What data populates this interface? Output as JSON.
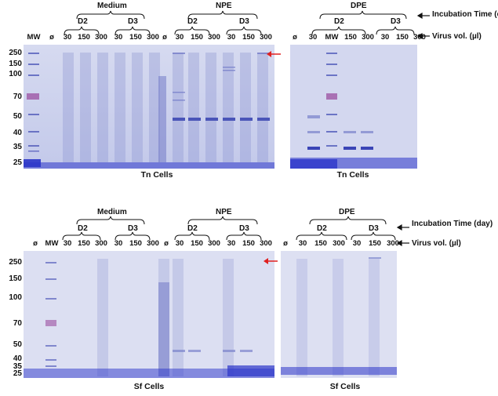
{
  "top_panel": {
    "left_gel": {
      "group_labels": [
        "Medium",
        "NPE"
      ],
      "day_labels": [
        "D2",
        "D3",
        "D2",
        "D3"
      ],
      "lane_labels": [
        "MW",
        "ø",
        "30",
        "150",
        "300",
        "30",
        "150",
        "300",
        "ø",
        "30",
        "150",
        "300",
        "30",
        "150",
        "300"
      ],
      "mw_markers": [
        "250",
        "150",
        "100",
        "70",
        "50",
        "40",
        "35",
        "25"
      ],
      "caption": "Tn Cells"
    },
    "right_gel": {
      "group_label": "DPE",
      "day_labels": [
        "D2",
        "D3"
      ],
      "lane_labels": [
        "ø",
        "30",
        "MW",
        "150",
        "300",
        "30",
        "150",
        "300"
      ],
      "caption": "Tn Cells"
    },
    "incubation_label": "Incubation Time (day)",
    "virus_label": "Virus vol. (µl)"
  },
  "bottom_panel": {
    "left_gel": {
      "group_labels": [
        "Medium",
        "NPE"
      ],
      "day_labels": [
        "D2",
        "D3",
        "D2",
        "D3"
      ],
      "lane_labels": [
        "ø",
        "MW",
        "30",
        "150",
        "300",
        "30",
        "150",
        "300",
        "ø",
        "30",
        "150",
        "300",
        "30",
        "150",
        "300"
      ],
      "mw_markers": [
        "250",
        "150",
        "100",
        "70",
        "50",
        "40",
        "35",
        "25"
      ],
      "caption": "Sf Cells"
    },
    "right_gel": {
      "group_label": "DPE",
      "day_labels": [
        "D2",
        "D3"
      ],
      "lane_labels": [
        "ø",
        "30",
        "150",
        "300",
        "30",
        "150",
        "300"
      ],
      "caption": "Sf Cells"
    },
    "incubation_label": "Incubation Time (day)",
    "virus_label": "Virus vol. (µl)"
  },
  "colors": {
    "gel_background": "#cdd2ec",
    "band": "#4a55b8",
    "dye_front": "#2b35c9",
    "marker_70": "#9b4fa0",
    "arrow": "#e02020"
  }
}
